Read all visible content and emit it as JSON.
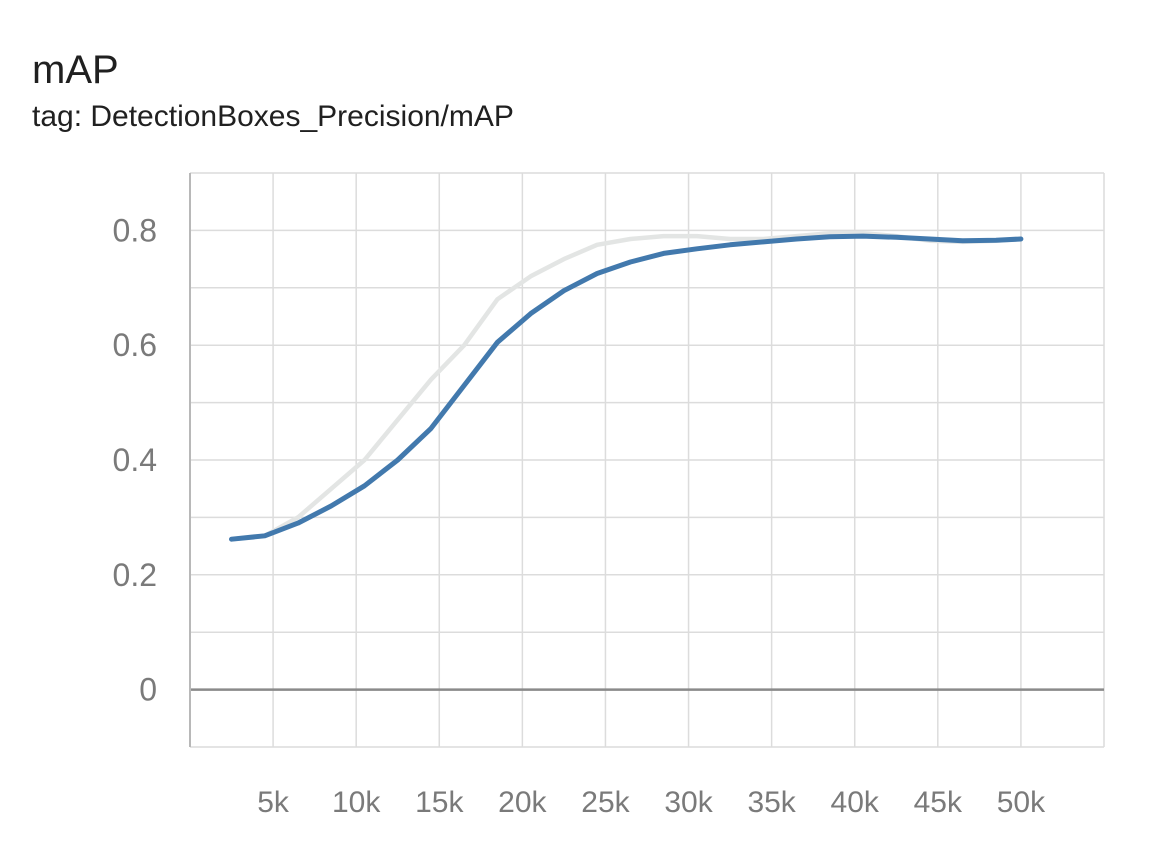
{
  "card": {
    "title": "mAP",
    "subtitle": "tag: DetectionBoxes_Precision/mAP"
  },
  "chart_data": {
    "type": "line",
    "title": "mAP",
    "subtitle": "tag: DetectionBoxes_Precision/mAP",
    "xlabel": "",
    "ylabel": "",
    "xlim": [
      0,
      55000
    ],
    "ylim": [
      -0.1,
      0.9
    ],
    "x_ticks": [
      5000,
      10000,
      15000,
      20000,
      25000,
      30000,
      35000,
      40000,
      45000,
      50000
    ],
    "x_tick_labels": [
      "5k",
      "10k",
      "15k",
      "20k",
      "25k",
      "30k",
      "35k",
      "40k",
      "45k",
      "50k"
    ],
    "y_ticks": [
      0,
      0.2,
      0.4,
      0.6,
      0.8
    ],
    "y_tick_labels": [
      "0",
      "0.2",
      "0.4",
      "0.6",
      "0.8"
    ],
    "grid": true,
    "series": [
      {
        "role": "raw",
        "color": "#e3e5e4",
        "x": [
          2500,
          4500,
          6500,
          8500,
          10500,
          12500,
          14500,
          16500,
          18500,
          20500,
          22500,
          24500,
          26500,
          28500,
          30500,
          32500,
          34500,
          36500,
          38500,
          40500,
          42500,
          44500,
          46500,
          48500,
          50000
        ],
        "values": [
          0.262,
          0.268,
          0.3,
          0.35,
          0.4,
          0.47,
          0.54,
          0.6,
          0.68,
          0.72,
          0.75,
          0.775,
          0.785,
          0.79,
          0.79,
          0.785,
          0.785,
          0.79,
          0.795,
          0.795,
          0.79,
          0.782,
          0.78,
          0.782,
          0.785
        ]
      },
      {
        "role": "smoothed",
        "color": "#4279ad",
        "x": [
          2500,
          4500,
          6500,
          8500,
          10500,
          12500,
          14500,
          16500,
          18500,
          20500,
          22500,
          24500,
          26500,
          28500,
          30500,
          32500,
          34500,
          36500,
          38500,
          40500,
          42500,
          44500,
          46500,
          48500,
          50000
        ],
        "values": [
          0.262,
          0.268,
          0.29,
          0.32,
          0.355,
          0.4,
          0.455,
          0.53,
          0.605,
          0.655,
          0.695,
          0.725,
          0.745,
          0.76,
          0.768,
          0.775,
          0.78,
          0.785,
          0.789,
          0.79,
          0.788,
          0.785,
          0.782,
          0.783,
          0.785
        ]
      }
    ]
  }
}
